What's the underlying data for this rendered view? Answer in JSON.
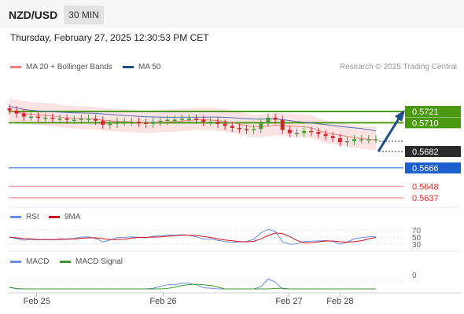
{
  "header": {
    "pair": "NZD/USD",
    "timeframe": "30 MIN"
  },
  "datetime": "Thursday, February 27, 2025 12:30:53 PM CET",
  "legend": {
    "ma20": {
      "label": "MA 20 + Bollinger Bands",
      "color": "#f08080"
    },
    "ma50": {
      "label": "MA 50",
      "color": "#1f4e8c"
    },
    "rsi": {
      "label": "RSI",
      "color": "#6a8fe0"
    },
    "ma9": {
      "label": "9MA",
      "color": "#d0101a"
    },
    "macd": {
      "label": "MACD",
      "color": "#6a8fe0"
    },
    "macd_signal": {
      "label": "MACD Signal",
      "color": "#3a9b2a"
    }
  },
  "credit": "Research © 2025 Trading Central",
  "colors": {
    "up": "#4a9a3c",
    "down": "#cc2a2a",
    "band": "#fbd9d9",
    "green_level": "#4a9a10",
    "blue_level": "#1a5fd0",
    "red_level": "#e03030",
    "arrow": "#1f4e8c"
  },
  "chart_data": {
    "type": "candlestick",
    "ylim": [
      0.563,
      0.573
    ],
    "x_ticks": [
      "Feb 25",
      "Feb 26",
      "Feb 27",
      "Feb 28"
    ],
    "x_tick_positions": [
      3.8,
      21.4,
      38.9,
      46
    ],
    "closes": [
      0.5722,
      0.5719,
      0.5716,
      0.5716,
      0.5715,
      0.5715,
      0.5714,
      0.5714,
      0.5713,
      0.5713,
      0.5714,
      0.5714,
      0.5712,
      0.5708,
      0.5709,
      0.5711,
      0.5711,
      0.5711,
      0.571,
      0.5709,
      0.5711,
      0.5712,
      0.5713,
      0.5713,
      0.5714,
      0.5714,
      0.5713,
      0.5711,
      0.5711,
      0.5709,
      0.5707,
      0.5705,
      0.5704,
      0.5703,
      0.5704,
      0.571,
      0.5715,
      0.5713,
      0.5703,
      0.57,
      0.57,
      0.5702,
      0.5701,
      0.5699,
      0.5697,
      0.5695,
      0.5691,
      0.5692,
      0.5694,
      0.5694,
      0.5694,
      0.5694
    ],
    "levels": [
      {
        "label": "0.5721",
        "value": 0.5721,
        "style": "green"
      },
      {
        "label": "0.5710",
        "value": 0.571,
        "style": "green"
      },
      {
        "label": "0.5682",
        "value": 0.5682,
        "style": "current"
      },
      {
        "label": "0.5666",
        "value": 0.5666,
        "style": "blue"
      },
      {
        "label": "0.5648",
        "value": 0.5648,
        "style": "red"
      },
      {
        "label": "0.5637",
        "value": 0.5637,
        "style": "red"
      }
    ],
    "arrow": {
      "from": 0.5682,
      "to": 0.5721,
      "direction": "up"
    },
    "rsi": {
      "levels": [
        70,
        50,
        30
      ]
    },
    "macd": {
      "zero_label": "0"
    }
  }
}
